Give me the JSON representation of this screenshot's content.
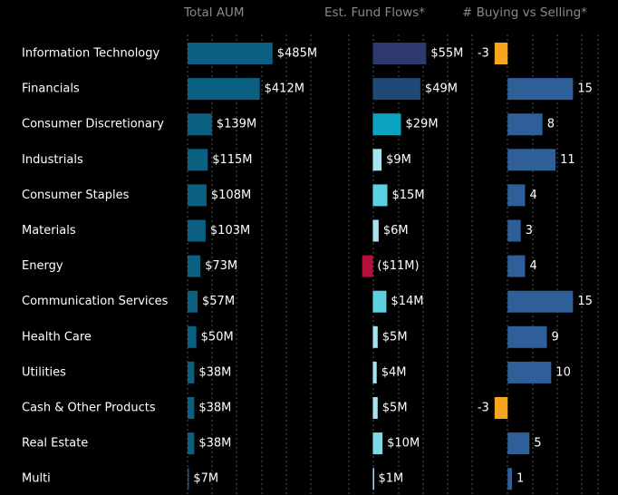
{
  "chart_data": {
    "type": "bar",
    "orientation": "horizontal",
    "categories": [
      "Information Technology",
      "Financials",
      "Consumer Discretionary",
      "Industrials",
      "Consumer Staples",
      "Materials",
      "Energy",
      "Communication Services",
      "Health Care",
      "Utilities",
      "Cash & Other Products",
      "Real Estate",
      "Multi"
    ],
    "series": [
      {
        "name": "Total AUM",
        "xlim": [
          0,
          750
        ],
        "values": [
          485,
          412,
          139,
          115,
          108,
          103,
          73,
          57,
          50,
          38,
          38,
          38,
          7
        ],
        "value_labels": [
          "$485M",
          "$412M",
          "$139M",
          "$115M",
          "$108M",
          "$103M",
          "$73M",
          "$57M",
          "$50M",
          "$38M",
          "$38M",
          "$38M",
          "$7M"
        ],
        "colors": [
          "#0b5f80",
          "#0b5f80",
          "#0b5f80",
          "#0b5f80",
          "#0b5f80",
          "#0b5f80",
          "#0b5f80",
          "#0b5f80",
          "#0b5f80",
          "#0b5f80",
          "#0b5f80",
          "#0b5f80",
          "#0b5f80"
        ]
      },
      {
        "name": "Est. Fund Flows*",
        "xlim": [
          -20,
          120
        ],
        "values": [
          55,
          49,
          29,
          9,
          15,
          6,
          -11,
          14,
          5,
          4,
          5,
          10,
          1
        ],
        "value_labels": [
          "$55M",
          "$49M",
          "$29M",
          "$9M",
          "$15M",
          "$6M",
          "($11M)",
          "$14M",
          "$5M",
          "$4M",
          "$5M",
          "$10M",
          "$1M"
        ],
        "colors": [
          "#2e3a6e",
          "#1f4a78",
          "#0aa3c2",
          "#a6e3ef",
          "#5cd0e0",
          "#a6e3ef",
          "#b3103c",
          "#5cd0e0",
          "#a6e3ef",
          "#a6e3ef",
          "#a6e3ef",
          "#7fd8e8",
          "#a6e3ef"
        ]
      },
      {
        "name": "# Buying vs Selling*",
        "xlim": [
          -4,
          22
        ],
        "values": [
          -3,
          15,
          8,
          11,
          4,
          3,
          4,
          15,
          9,
          10,
          -3,
          5,
          1
        ],
        "colors": [
          "#f7a51c",
          "#2f5f99",
          "#2f5f99",
          "#2f5f99",
          "#2f5f99",
          "#2f5f99",
          "#2f5f99",
          "#2f5f99",
          "#2f5f99",
          "#2f5f99",
          "#f7a51c",
          "#2f5f99",
          "#2f5f99"
        ]
      }
    ]
  }
}
